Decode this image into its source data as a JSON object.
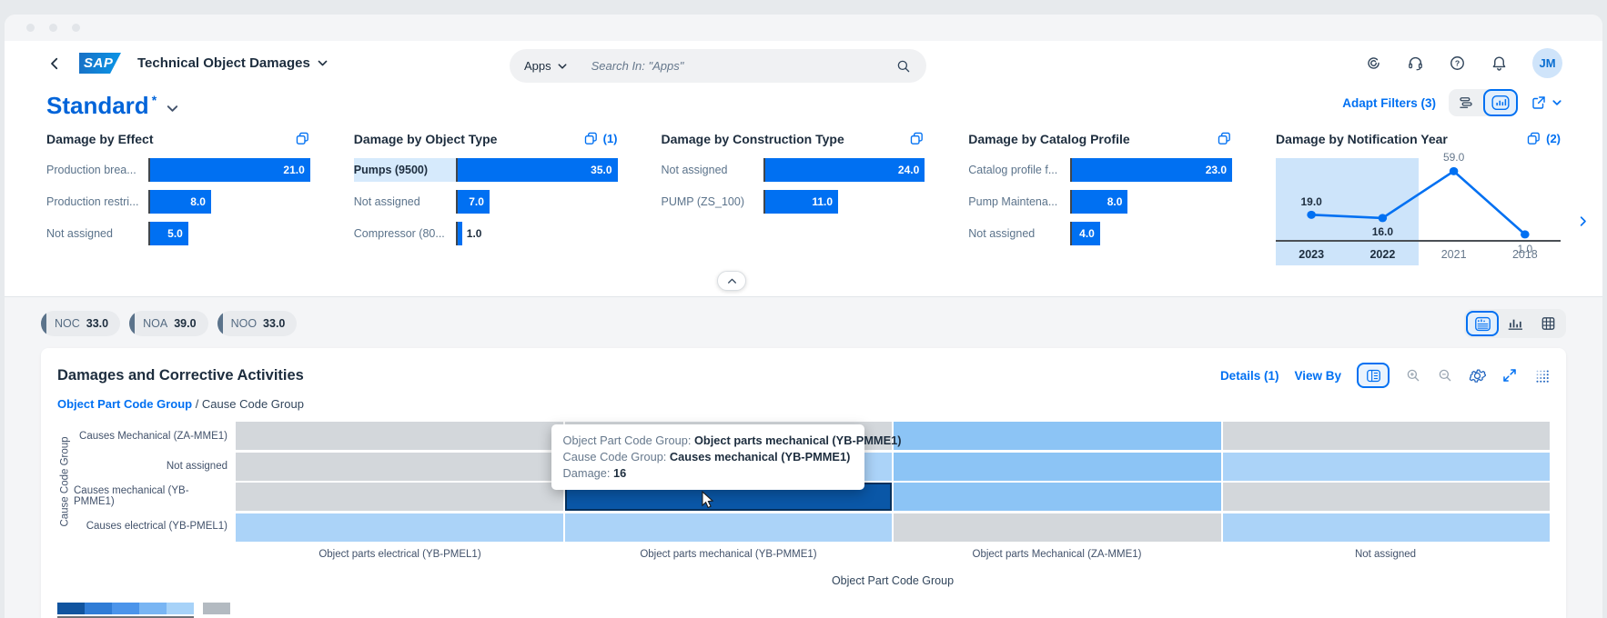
{
  "shell": {
    "logo_text": "SAP",
    "app_title": "Technical Object Damages",
    "search": {
      "scope": "Apps",
      "placeholder": "Search In: \"Apps\""
    },
    "avatar_initials": "JM"
  },
  "variant": {
    "title": "Standard",
    "dirty_marker": "*",
    "adapt_filters_label": "Adapt Filters (3)"
  },
  "filters": {
    "bar_cards": [
      {
        "title": "Damage by Effect",
        "badge": "",
        "rows": [
          {
            "label": "Production brea...",
            "value": 21.0
          },
          {
            "label": "Production restri...",
            "value": 8.0
          },
          {
            "label": "Not assigned",
            "value": 5.0
          }
        ]
      },
      {
        "title": "Damage by Object Type",
        "badge": "(1)",
        "rows": [
          {
            "label": "Pumps (9500)",
            "value": 35.0,
            "selected": true
          },
          {
            "label": "Not assigned",
            "value": 7.0
          },
          {
            "label": "Compressor (80...",
            "value": 1.0
          }
        ]
      },
      {
        "title": "Damage by Construction Type",
        "badge": "",
        "rows": [
          {
            "label": "Not assigned",
            "value": 24.0
          },
          {
            "label": "PUMP (ZS_100)",
            "value": 11.0
          }
        ]
      },
      {
        "title": "Damage by Catalog Profile",
        "badge": "",
        "rows": [
          {
            "label": "Catalog profile f...",
            "value": 23.0
          },
          {
            "label": "Pump Maintena...",
            "value": 8.0
          },
          {
            "label": "Not assigned",
            "value": 4.0
          }
        ]
      }
    ],
    "year_card": {
      "title": "Damage by Notification Year",
      "badge": "(2)",
      "ymax": 62,
      "points": [
        {
          "label": "2023",
          "value": 19.0,
          "selected": true,
          "label_pos": "above"
        },
        {
          "label": "2022",
          "value": 16.0,
          "selected": true,
          "label_pos": "below"
        },
        {
          "label": "2021",
          "value": 59.0,
          "selected": false,
          "label_pos": "above"
        },
        {
          "label": "2018",
          "value": 1.0,
          "selected": false,
          "label_pos": "below"
        }
      ],
      "line_color": "#0070f2",
      "band_color": "#cde4fa"
    }
  },
  "tokens": [
    {
      "label": "NOC",
      "value": "33.0"
    },
    {
      "label": "NOA",
      "value": "39.0"
    },
    {
      "label": "NOO",
      "value": "33.0"
    }
  ],
  "main": {
    "title": "Damages and Corrective Activities",
    "details_label": "Details (1)",
    "view_by_label": "View By",
    "breadcrumb": {
      "link": "Object Part Code Group",
      "separator": " / ",
      "current": "Cause Code Group"
    }
  },
  "heatmap": {
    "y_axis_title": "Cause Code Group",
    "x_axis_title": "Object Part Code Group",
    "row_labels": [
      "Causes Mechanical (ZA-MME1)",
      "Not assigned",
      "Causes mechanical (YB-PMME1)",
      "Causes electrical (YB-PMEL1)"
    ],
    "col_labels": [
      "Object parts electrical (YB-PMEL1)",
      "Object parts mechanical (YB-PMME1)",
      "Object parts Mechanical (ZA-MME1)",
      "Not assigned"
    ],
    "cells": [
      [
        "gray",
        "gray",
        "medium",
        "gray"
      ],
      [
        "gray",
        "light",
        "medium",
        "light"
      ],
      [
        "gray",
        "selected",
        "medium",
        "gray"
      ],
      [
        "light",
        "light",
        "gray",
        "light"
      ]
    ],
    "palette": {
      "gray": "#d3d7db",
      "light": "#abd3f8",
      "medium": "#8cc4f5",
      "selected": "#0a57a7"
    },
    "selected_cell_value": 16,
    "legend_blues": [
      "#10549f",
      "#2f7cd6",
      "#4b94ea",
      "#79b5f3",
      "#a7d2f8"
    ],
    "legend_gray": "#b3bac1"
  },
  "tooltip": {
    "lines": [
      {
        "label": "Object Part Code Group: ",
        "value": "Object parts mechanical (YB-PMME1)"
      },
      {
        "label": "Cause Code Group: ",
        "value": "Causes mechanical (YB-PMME1)"
      },
      {
        "label": "Damage: ",
        "value": "16"
      }
    ]
  },
  "colors": {
    "accent": "#0070f2",
    "bar": "#0070f2",
    "selected_row_bg": "#d6eafc"
  }
}
